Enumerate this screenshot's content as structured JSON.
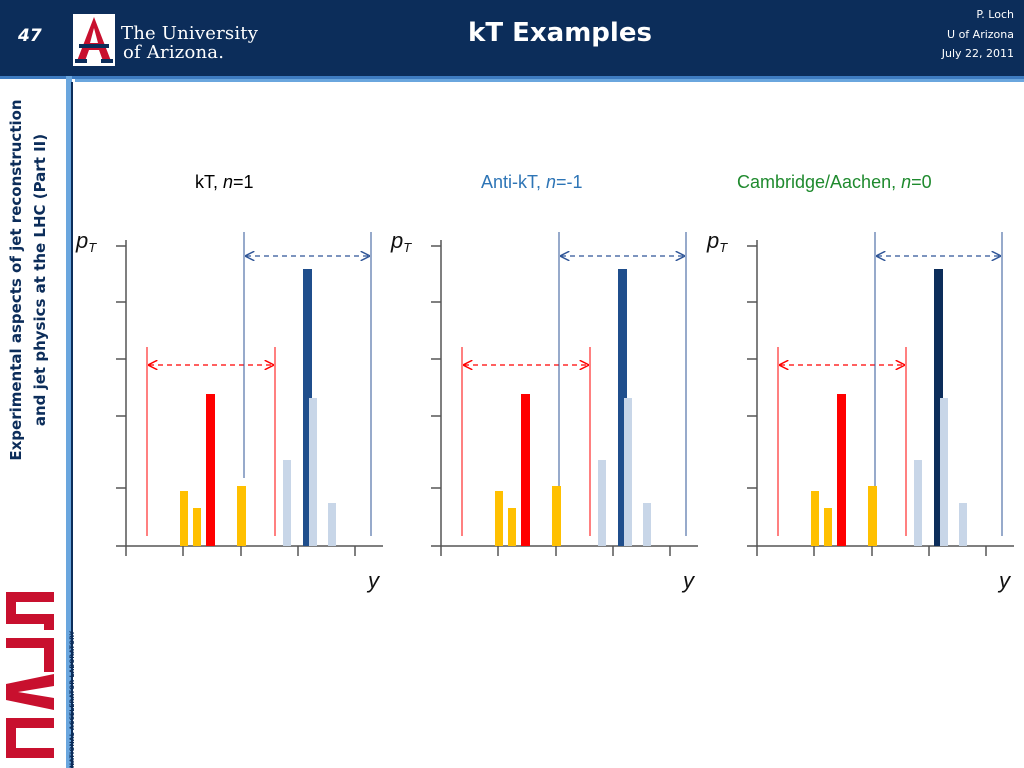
{
  "header": {
    "slide_number": "47",
    "logo_line1": "The University",
    "logo_line2": "of Arizona.",
    "title": "kT Examples",
    "author": "P. Loch",
    "affiliation": "U of Arizona",
    "date": "July 22, 2011"
  },
  "sidebar": {
    "line1": "Experimental aspects of jet reconstruction",
    "line2": "and jet physics at the LHC (Part II)",
    "lab_sub": "NATIONAL ACCELERATOR LABORATORY"
  },
  "panels": [
    {
      "label_pre": "kT, ",
      "label_n": "n",
      "label_post": "=1",
      "color": "#000000"
    },
    {
      "label_pre": "Anti-kT, ",
      "label_n": "n",
      "label_post": "=-1",
      "color": "#2e75b6"
    },
    {
      "label_pre": "Cambridge/Aachen, ",
      "label_n": "n",
      "label_post": "=0",
      "color": "#1f8a2e"
    }
  ],
  "axes": {
    "y_label": "p",
    "y_sub": "T",
    "x_label": "y"
  },
  "colors": {
    "header_bg": "#0c2d5a",
    "red": "#ff0000",
    "orange": "#ffc000",
    "dark_blue": "#1f4e8c",
    "navy": "#0c2d5a",
    "light_blue": "#c8d6e8"
  }
}
